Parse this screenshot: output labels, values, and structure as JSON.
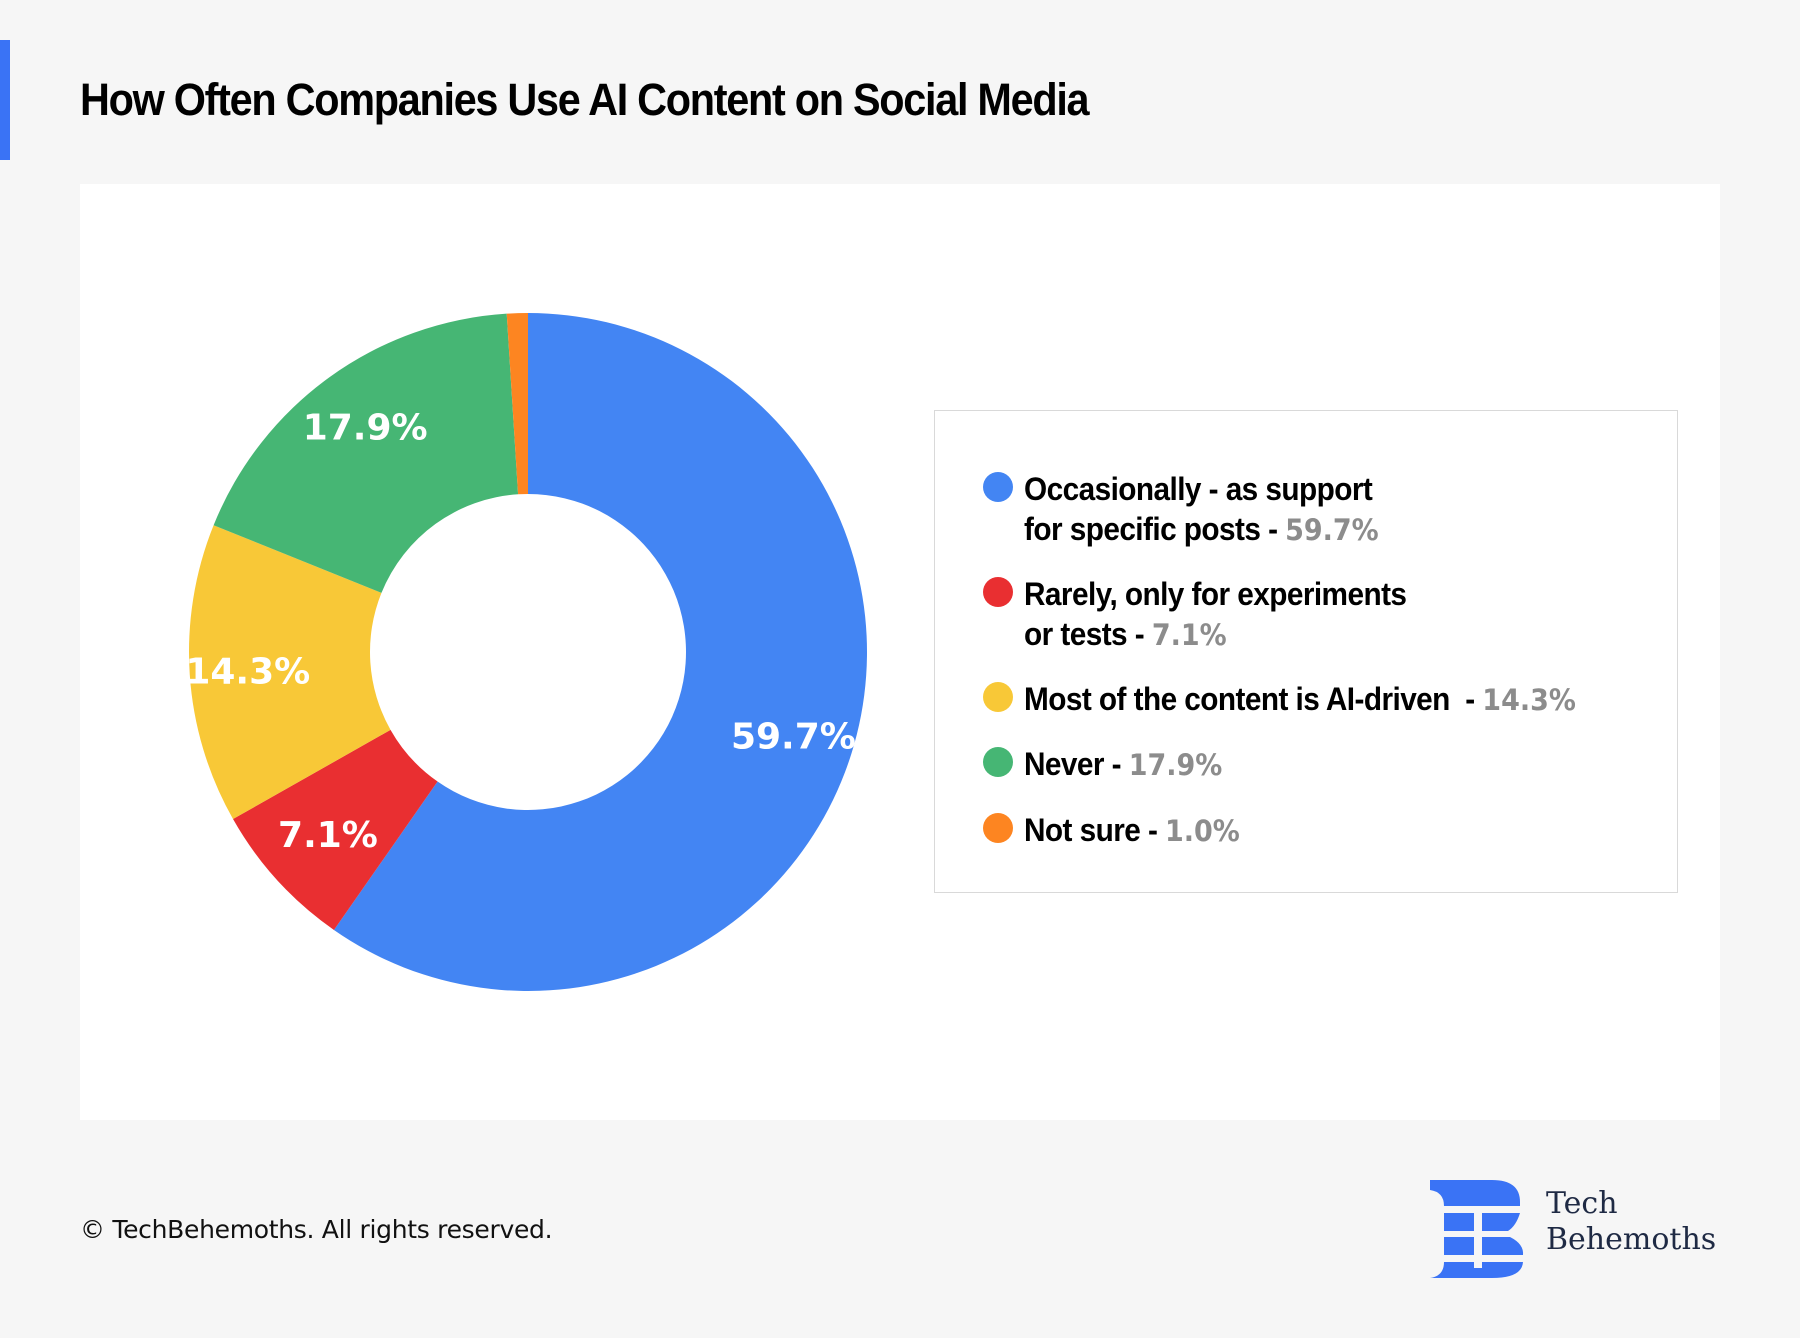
{
  "header": {
    "title": "How Often Companies Use AI Content on Social Media",
    "accent_color": "#3A73F5"
  },
  "chart_data": {
    "type": "pie",
    "variant": "donut",
    "title": "How Often Companies Use AI Content on Social Media",
    "unit": "%",
    "start": "12 o'clock, clockwise",
    "legend_position": "right",
    "categories": [
      "Occasionally - as support for specific posts",
      "Rarely, only for experiments or tests",
      "Most of the content is AI-driven",
      "Never",
      "Not sure"
    ],
    "values": [
      59.7,
      7.1,
      14.3,
      17.9,
      1.0
    ],
    "value_labels": [
      "59.7%",
      "7.1%",
      "14.3%",
      "17.9%",
      "1.0%"
    ],
    "slice_labels_shown": [
      true,
      true,
      true,
      true,
      false
    ],
    "colors": [
      "#4385F3",
      "#E92F31",
      "#F8C837",
      "#46B674",
      "#FD8521"
    ]
  },
  "legend": {
    "items": [
      {
        "line1": "Occasionally - as support",
        "line2": "for specific posts",
        "separator": " - ",
        "value": "59.7%",
        "color": "#4385F3"
      },
      {
        "line1": "Rarely, only for experiments",
        "line2": "or tests",
        "separator": " - ",
        "value": "7.1%",
        "color": "#E92F31"
      },
      {
        "line1": "Most of the content is AI-driven",
        "line2": "",
        "separator": "  - ",
        "value": "14.3%",
        "color": "#F8C837"
      },
      {
        "line1": "Never",
        "line2": "",
        "separator": " - ",
        "value": "17.9%",
        "color": "#46B674"
      },
      {
        "line1": "Not sure",
        "line2": "",
        "separator": " - ",
        "value": "1.0%",
        "color": "#FD8521"
      }
    ],
    "value_color": "#8C8C8C"
  },
  "footer": {
    "copyright": "© TechBehemoths. All rights reserved.",
    "logo_line1": "Tech",
    "logo_line2": "Behemoths",
    "logo_icon": "techbehemoths-logo-icon",
    "logo_color": "#3A73F5"
  }
}
